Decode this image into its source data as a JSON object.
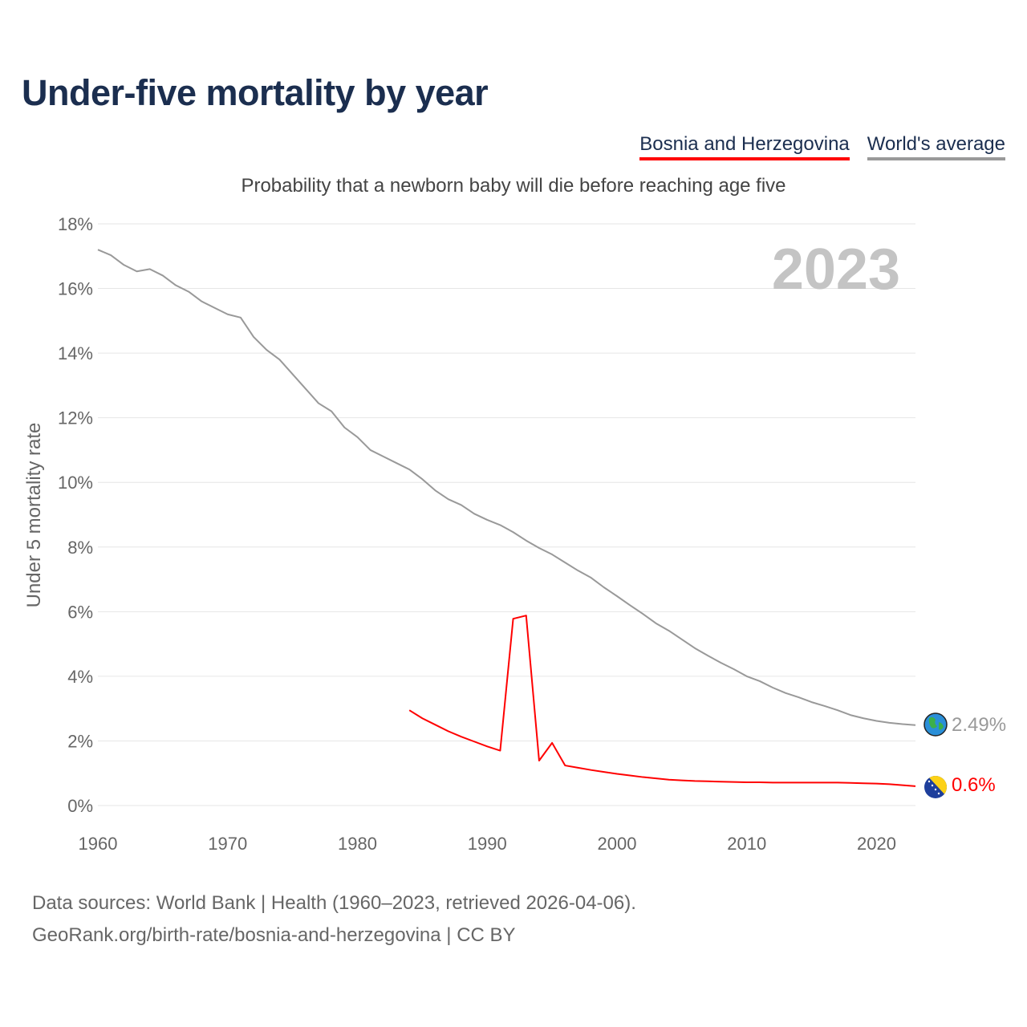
{
  "title": "Under-five mortality by year",
  "legend": [
    {
      "label": "Bosnia and Herzegovina",
      "color": "#ff0000"
    },
    {
      "label": "World's average",
      "color": "#999999"
    }
  ],
  "subtitle": "Probability that a newborn baby will die before reaching age five",
  "year_label": "2023",
  "end_labels": {
    "world": "2.49%",
    "bih": "0.6%"
  },
  "footer": {
    "line1": "Data sources: World Bank | Health (1960–2023, retrieved 2026-04-06).",
    "line2": "GeoRank.org/birth-rate/bosnia-and-herzegovina | CC BY"
  },
  "chart_data": {
    "type": "line",
    "title": "Under-five mortality by year",
    "xlabel": "",
    "ylabel": "Under 5 mortality rate",
    "xlim": [
      1960,
      2023
    ],
    "ylim": [
      0,
      18
    ],
    "yticks": [
      0,
      2,
      4,
      6,
      8,
      10,
      12,
      14,
      16,
      18
    ],
    "ytick_labels": [
      "0%",
      "2%",
      "4%",
      "6%",
      "8%",
      "10%",
      "12%",
      "14%",
      "16%",
      "18%"
    ],
    "xticks": [
      1960,
      1970,
      1980,
      1990,
      2000,
      2010,
      2020
    ],
    "xtick_labels": [
      "1960",
      "1970",
      "1980",
      "1990",
      "2000",
      "2010",
      "2020"
    ],
    "grid": true,
    "legend_position": "top-right",
    "series": [
      {
        "name": "World's average",
        "color": "#999999",
        "x_start": 1960,
        "values": [
          17.2,
          17.03,
          16.73,
          16.53,
          16.6,
          16.4,
          16.1,
          15.9,
          15.6,
          15.4,
          15.2,
          15.1,
          14.5,
          14.1,
          13.8,
          13.35,
          12.9,
          12.45,
          12.2,
          11.7,
          11.4,
          11.0,
          10.8,
          10.6,
          10.4,
          10.1,
          9.75,
          9.48,
          9.3,
          9.03,
          8.84,
          8.68,
          8.46,
          8.2,
          7.97,
          7.77,
          7.52,
          7.27,
          7.05,
          6.75,
          6.48,
          6.2,
          5.93,
          5.64,
          5.41,
          5.14,
          4.87,
          4.64,
          4.42,
          4.22,
          4.0,
          3.85,
          3.65,
          3.48,
          3.35,
          3.2,
          3.08,
          2.95,
          2.8,
          2.7,
          2.62,
          2.56,
          2.52,
          2.49
        ]
      },
      {
        "name": "Bosnia and Herzegovina",
        "color": "#ff0000",
        "x_start": 1984,
        "values": [
          2.95,
          2.7,
          2.5,
          2.3,
          2.13,
          1.98,
          1.83,
          1.7,
          5.78,
          5.88,
          1.39,
          1.94,
          1.24,
          1.17,
          1.1,
          1.04,
          0.98,
          0.93,
          0.88,
          0.84,
          0.8,
          0.78,
          0.76,
          0.75,
          0.74,
          0.73,
          0.72,
          0.72,
          0.71,
          0.71,
          0.71,
          0.71,
          0.71,
          0.71,
          0.7,
          0.69,
          0.68,
          0.66,
          0.63,
          0.6
        ]
      }
    ]
  }
}
